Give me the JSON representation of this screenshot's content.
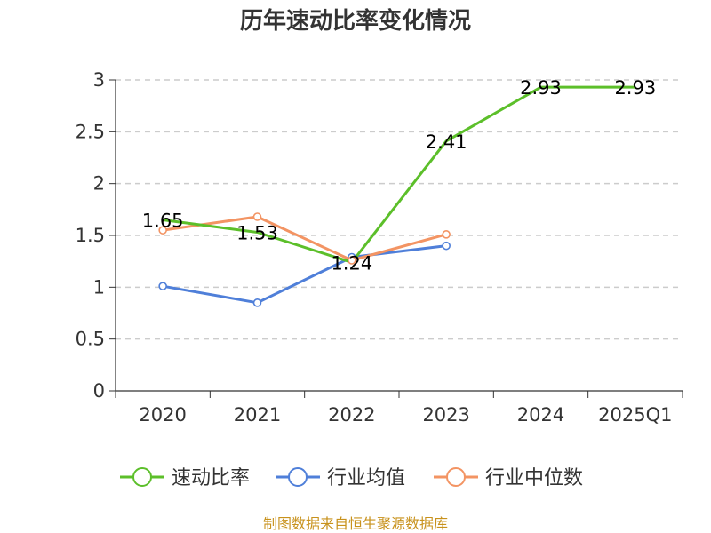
{
  "chart_data": {
    "type": "line",
    "title": "历年速动比率变化情况",
    "categories": [
      "2020",
      "2021",
      "2022",
      "2023",
      "2024",
      "2025Q1"
    ],
    "ylim": [
      0,
      3
    ],
    "yticks": [
      "0",
      "0.5",
      "1",
      "1.5",
      "2",
      "2.5",
      "3"
    ],
    "grid": true,
    "legend_position": "bottom",
    "series": [
      {
        "name": "速动比率",
        "color": "#5cbf2a",
        "values": [
          1.65,
          1.53,
          1.24,
          2.41,
          2.93,
          2.93
        ],
        "labels": [
          "1.65",
          "1.53",
          "1.24",
          "2.41",
          "2.93",
          "2.93"
        ]
      },
      {
        "name": "行业均值",
        "color": "#4f7fd9",
        "values": [
          1.01,
          0.85,
          1.29,
          1.4,
          null,
          null
        ]
      },
      {
        "name": "行业中位数",
        "color": "#f39463",
        "values": [
          1.55,
          1.68,
          1.26,
          1.51,
          null,
          null
        ]
      }
    ]
  },
  "source": "制图数据来自恒生聚源数据库"
}
